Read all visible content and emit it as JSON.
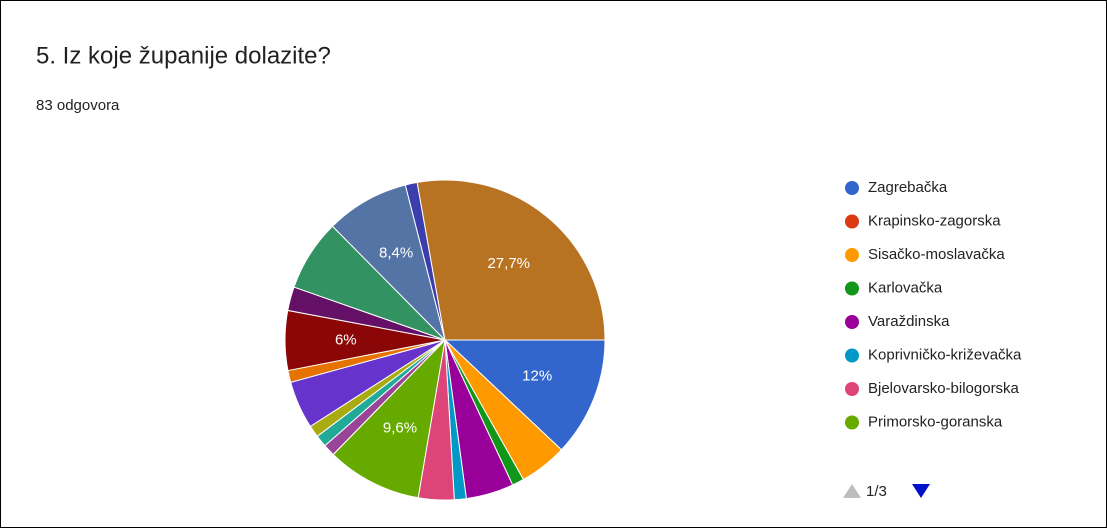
{
  "chart_data": {
    "type": "pie",
    "title": "5. Iz koje županije dolazite?",
    "subtitle": "83 odgovora",
    "categories": [
      "Zagrebačka",
      "Krapinsko-zagorska",
      "Sisačko-moslavačka",
      "Karlovačka",
      "Varaždinska",
      "Koprivničko-križevačka",
      "Bjelovarsko-bilogorska",
      "Primorsko-goranska",
      null,
      null,
      null,
      null,
      null,
      null,
      null,
      null,
      null,
      null,
      null,
      null,
      null
    ],
    "values": [
      12,
      0,
      4.8,
      1.2,
      4.8,
      1.2,
      3.6,
      9.6,
      0,
      0,
      1.2,
      1.2,
      1.2,
      4.8,
      1.2,
      6,
      2.4,
      7.2,
      8.4,
      1.2,
      27.7
    ],
    "value_labels": [
      "12%",
      null,
      null,
      null,
      null,
      null,
      null,
      "9,6%",
      null,
      null,
      null,
      null,
      null,
      null,
      null,
      "6%",
      null,
      null,
      "8,4%",
      null,
      "27,7%"
    ],
    "colors": [
      "#3366cc",
      "#dc3912",
      "#ff9900",
      "#109618",
      "#990099",
      "#0099c6",
      "#dd4477",
      "#66aa00",
      "#b82e2e",
      "#316395",
      "#994499",
      "#22aa99",
      "#aaaa11",
      "#6633cc",
      "#e67300",
      "#8b0707",
      "#651067",
      "#329262",
      "#5574a6",
      "#3b3eac",
      "#b77322"
    ],
    "legend_page": "1/3"
  }
}
